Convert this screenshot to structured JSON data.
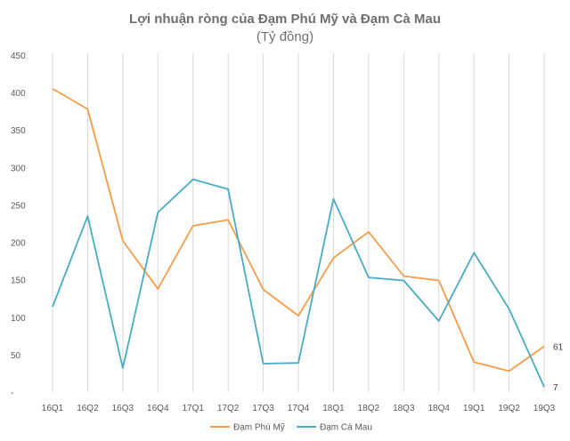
{
  "chart_data": {
    "type": "line",
    "title": "Lợi nhuận ròng của Đạm Phú Mỹ và Đạm Cà Mau",
    "subtitle": "(Tỷ đồng)",
    "categories": [
      "16Q1",
      "16Q2",
      "16Q3",
      "16Q4",
      "17Q1",
      "17Q2",
      "17Q3",
      "17Q4",
      "18Q1",
      "18Q2",
      "18Q3",
      "18Q4",
      "19Q1",
      "19Q2",
      "19Q3"
    ],
    "y_ticks": [
      "-",
      "50",
      "100",
      "150",
      "200",
      "250",
      "300",
      "350",
      "400",
      "450"
    ],
    "ylim": [
      0,
      450
    ],
    "grid": "vertical lines at categories",
    "legend_position": "bottom",
    "series": [
      {
        "name": "Đạm Phú Mỹ",
        "color": "#f39c4a",
        "values": [
          405,
          378,
          202,
          138,
          222,
          230,
          137,
          102,
          179,
          214,
          155,
          149,
          40,
          28,
          61
        ],
        "end_label": "61"
      },
      {
        "name": "Đạm Cà Mau",
        "color": "#4aacc0",
        "values": [
          114,
          235,
          32,
          240,
          284,
          271,
          38,
          39,
          258,
          153,
          149,
          95,
          186,
          111,
          7
        ],
        "end_label": "7"
      }
    ]
  }
}
